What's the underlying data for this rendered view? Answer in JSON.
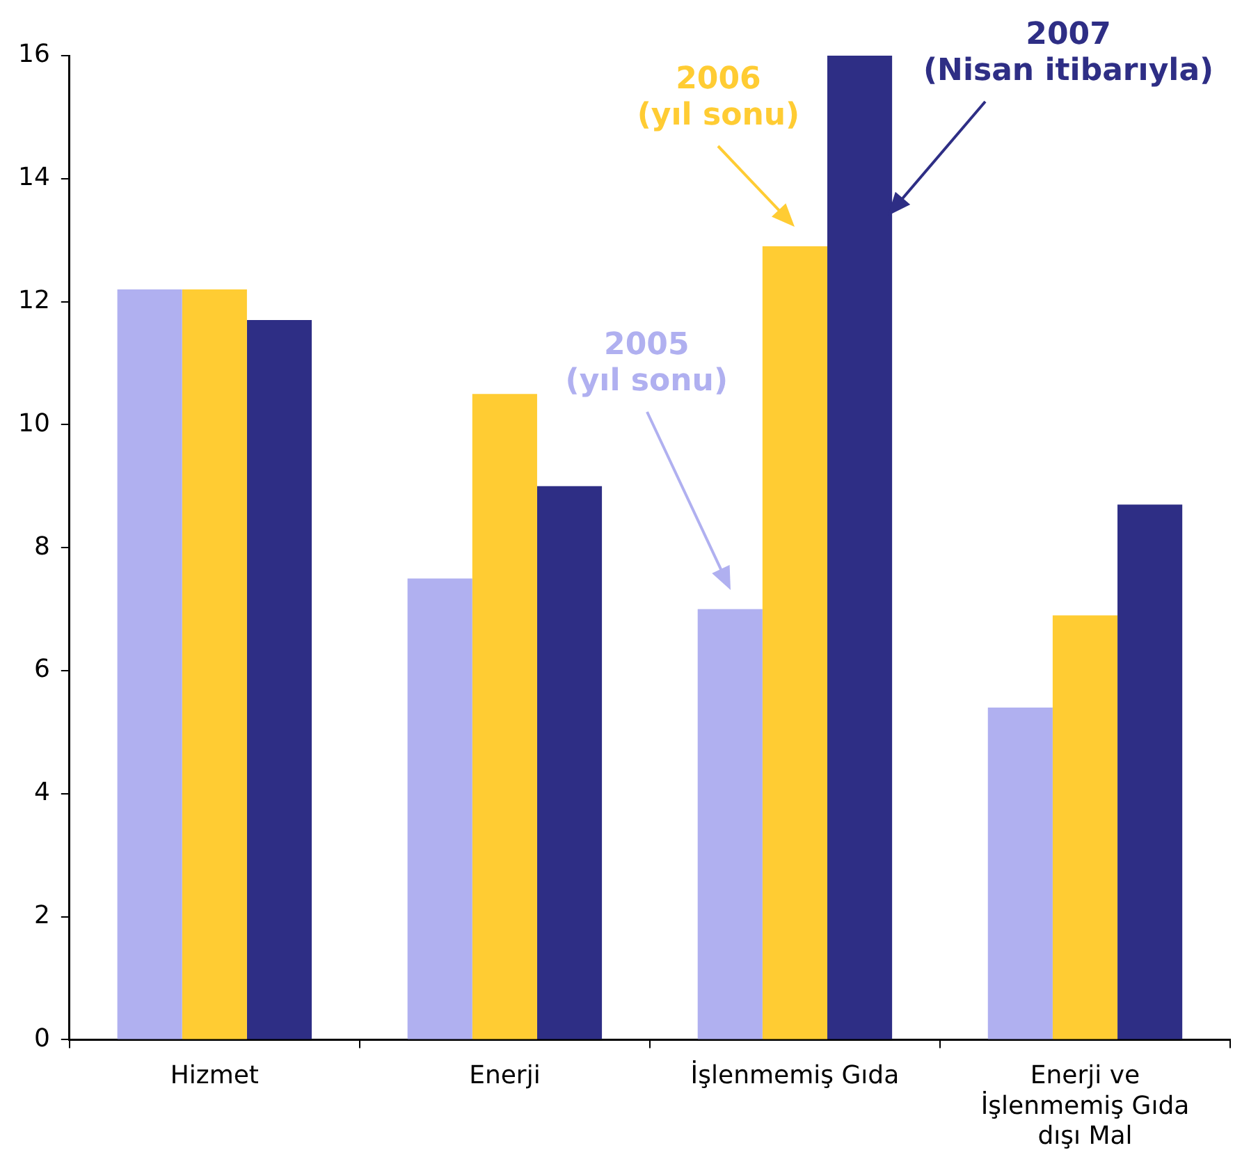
{
  "chart_data": {
    "type": "bar",
    "categories": [
      "Hizmet",
      "Enerji",
      "İşlenmemiş Gıda",
      "Enerji ve İşlenmemiş Gıda dışı Mal"
    ],
    "series": [
      {
        "name": "2005 (yıl sonu)",
        "color": "#b0b0f0",
        "values": [
          12.2,
          7.5,
          7.0,
          5.4
        ]
      },
      {
        "name": "2006 (yıl sonu)",
        "color": "#ffcc33",
        "values": [
          12.2,
          10.5,
          12.9,
          6.9
        ]
      },
      {
        "name": "2007 (Nisan itibarıyla)",
        "color": "#2e2e85",
        "values": [
          11.7,
          9.0,
          16.0,
          8.7
        ]
      }
    ],
    "ylim": [
      0,
      16
    ],
    "yticks": [
      0,
      2,
      4,
      6,
      8,
      10,
      12,
      14,
      16
    ],
    "grid": false,
    "legend": false
  }
}
